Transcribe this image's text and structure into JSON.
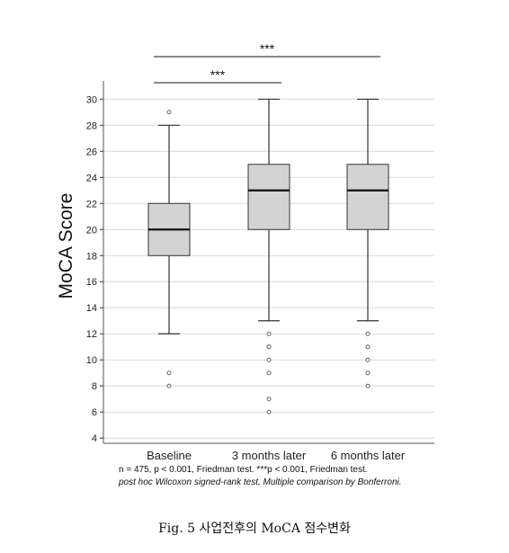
{
  "chart_data": {
    "type": "boxplot",
    "ylabel": "MoCA Score",
    "xlabel": "",
    "ylim": [
      3.6,
      31.4
    ],
    "yticks": [
      4,
      6,
      8,
      10,
      12,
      14,
      16,
      18,
      20,
      22,
      24,
      26,
      28,
      30
    ],
    "grid": "horizontal",
    "categories": [
      "Baseline",
      "3 months later",
      "6 months later"
    ],
    "boxes": [
      {
        "label": "Baseline",
        "whisker_low": 12,
        "q1": 18,
        "median": 20,
        "q3": 22,
        "whisker_high": 28,
        "outliers": [
          8,
          9,
          29
        ]
      },
      {
        "label": "3 months later",
        "whisker_low": 13,
        "q1": 20,
        "median": 23,
        "q3": 25,
        "whisker_high": 30,
        "outliers": [
          6,
          7,
          9,
          10,
          11,
          11,
          12
        ]
      },
      {
        "label": "6 months later",
        "whisker_low": 13,
        "q1": 20,
        "median": 23,
        "q3": 25,
        "whisker_high": 30,
        "outliers": [
          8,
          9,
          10,
          11,
          12
        ]
      }
    ],
    "significance": [
      {
        "from": "Baseline",
        "to": "3 months later",
        "label": "***"
      },
      {
        "from": "Baseline",
        "to": "6 months later",
        "label": "***"
      }
    ],
    "colors": {
      "box_fill": "#d3d3d3",
      "line": "#333333",
      "grid": "#d9d9d9",
      "outlier": "#666666"
    }
  },
  "notes": {
    "line1": "n = 475, p < 0.001, Friedman test. ***p < 0.001, Friedman test.",
    "line2": "post hoc Wilcoxon signed-rank test, Multiple comparison by Bonferroni."
  },
  "caption": "Fig. 5  사업전후의 MoCA 점수변화"
}
